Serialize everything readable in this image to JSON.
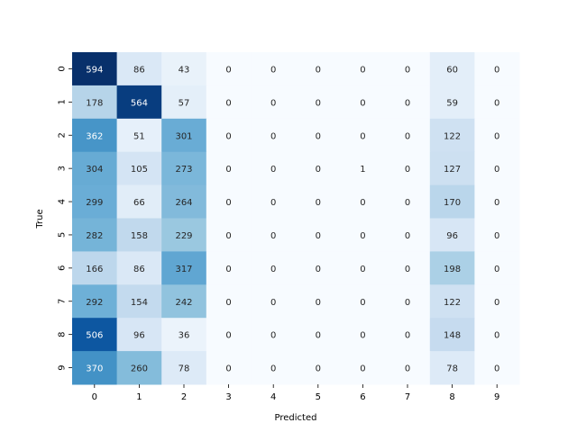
{
  "chart_data": {
    "type": "heatmap",
    "title": "",
    "xlabel": "Predicted",
    "ylabel": "True",
    "x_categories": [
      "0",
      "1",
      "2",
      "3",
      "4",
      "5",
      "6",
      "7",
      "8",
      "9"
    ],
    "y_categories": [
      "0",
      "1",
      "2",
      "3",
      "4",
      "5",
      "6",
      "7",
      "8",
      "9"
    ],
    "values": [
      [
        594,
        86,
        43,
        0,
        0,
        0,
        0,
        0,
        60,
        0
      ],
      [
        178,
        564,
        57,
        0,
        0,
        0,
        0,
        0,
        59,
        0
      ],
      [
        362,
        51,
        301,
        0,
        0,
        0,
        0,
        0,
        122,
        0
      ],
      [
        304,
        105,
        273,
        0,
        0,
        0,
        1,
        0,
        127,
        0
      ],
      [
        299,
        66,
        264,
        0,
        0,
        0,
        0,
        0,
        170,
        0
      ],
      [
        282,
        158,
        229,
        0,
        0,
        0,
        0,
        0,
        96,
        0
      ],
      [
        166,
        86,
        317,
        0,
        0,
        0,
        0,
        0,
        198,
        0
      ],
      [
        292,
        154,
        242,
        0,
        0,
        0,
        0,
        0,
        122,
        0
      ],
      [
        506,
        96,
        36,
        0,
        0,
        0,
        0,
        0,
        148,
        0
      ],
      [
        370,
        260,
        78,
        0,
        0,
        0,
        0,
        0,
        78,
        0
      ]
    ],
    "colormap": "Blues",
    "value_range": [
      0,
      594
    ],
    "colorbar": false,
    "annotations": true
  }
}
